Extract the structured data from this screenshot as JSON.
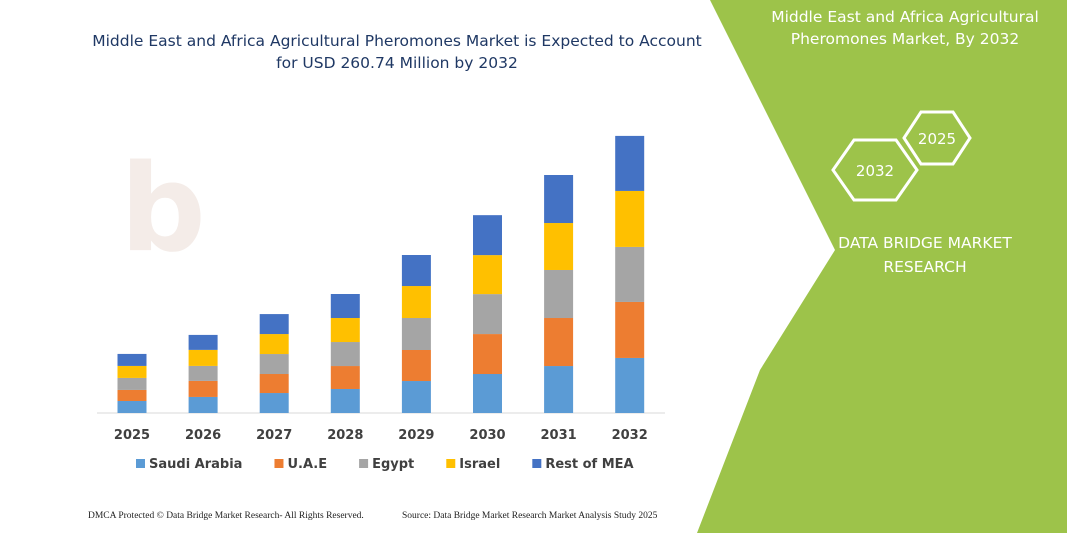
{
  "chart_data": {
    "type": "stacked_bar",
    "title": "Middle East and Africa Agricultural Pheromones Market is Expected to Account for USD 260.74 Million by 2032",
    "categories": [
      "2025",
      "2026",
      "2027",
      "2028",
      "2029",
      "2030",
      "2031",
      "2032"
    ],
    "series": [
      {
        "name": "Saudi Arabia",
        "color": "#5b9bd5",
        "values": [
          11.3,
          15.1,
          18.8,
          22.6,
          30.1,
          36.7,
          44.2,
          51.8
        ]
      },
      {
        "name": "U.A.E",
        "color": "#ed7d31",
        "values": [
          10.4,
          15.1,
          17.9,
          21.6,
          29.2,
          37.6,
          45.2,
          52.7
        ]
      },
      {
        "name": "Egypt",
        "color": "#a5a5a5",
        "values": [
          11.3,
          14.1,
          18.8,
          22.6,
          30.1,
          37.6,
          45.2,
          51.8
        ]
      },
      {
        "name": "Israel",
        "color": "#ffc000",
        "values": [
          11.3,
          15.1,
          18.8,
          22.6,
          30.1,
          36.7,
          44.2,
          52.7
        ]
      },
      {
        "name": "Rest of MEA",
        "color": "#4472c4",
        "values": [
          11.3,
          14.1,
          18.8,
          22.6,
          29.2,
          37.6,
          45.2,
          51.8
        ]
      }
    ],
    "ylim": [
      0,
      280
    ]
  },
  "panel": {
    "title": "Middle East and Africa Agricultural Pheromones Market, By 2032",
    "hex_back": "2025",
    "hex_front": "2032",
    "brand": "DATA BRIDGE MARKET RESEARCH"
  },
  "footer": {
    "left": "DMCA Protected © Data Bridge Market Research- All Rights Reserved.",
    "right": "Source: Data Bridge Market Research Market Analysis Study 2025"
  }
}
